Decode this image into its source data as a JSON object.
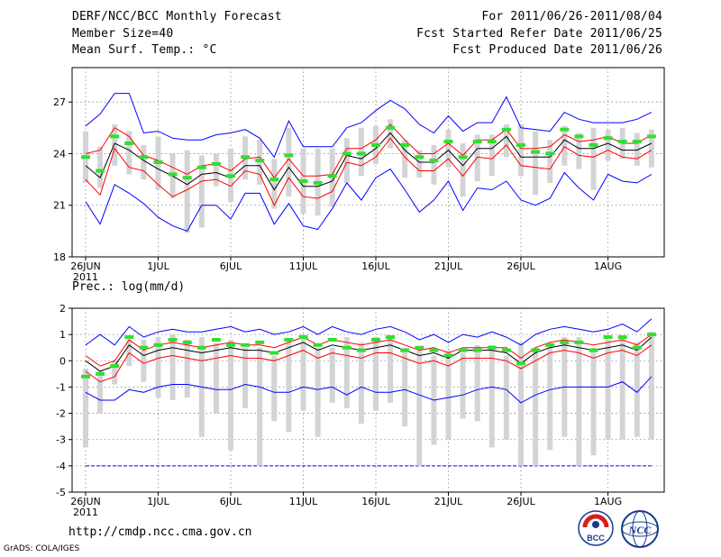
{
  "header": {
    "title": "DERF/NCC/BCC Monthly Forecast",
    "member_size": "Member Size=40",
    "variable": "Mean Surf. Temp.: °C",
    "period": "For 2011/06/26-2011/08/04",
    "refer_date": "Fcst Started Refer Date 2011/06/25",
    "produced_date": "Fcst Produced Date 2011/06/26"
  },
  "footer": {
    "url": "http://cmdp.ncc.cma.gov.cn",
    "grads": "GrADS: COLA/IGES",
    "logo_bcc": "BCC",
    "logo_ncc": "NCC"
  },
  "colors": {
    "box": "#d4d4d6",
    "ensemble_mean": "#000000",
    "spread": "#ff0000",
    "extreme": "#0000ff",
    "observation": "#33dd33",
    "grid": "#888888"
  },
  "chart_data": [
    {
      "type": "box",
      "title": "Mean Surf. Temp.: °C",
      "x_tick_labels": [
        "26JUN",
        "1JUL",
        "6JUL",
        "11JUL",
        "16JUL",
        "21JUL",
        "26JUL",
        "1AUG"
      ],
      "x_tick_days": [
        0,
        5,
        10,
        15,
        20,
        25,
        30,
        36
      ],
      "year_label": "2011",
      "ylim": [
        18,
        29
      ],
      "y_ticks": [
        18,
        21,
        24,
        27
      ],
      "mean": [
        23.3,
        22.6,
        24.6,
        24.2,
        23.6,
        23.1,
        22.7,
        22.2,
        22.8,
        22.9,
        22.6,
        23.3,
        23.3,
        21.9,
        23.2,
        22.1,
        22.1,
        22.4,
        23.9,
        23.7,
        24.3,
        25.2,
        24.2,
        23.5,
        23.5,
        24.2,
        23.3,
        24.3,
        24.3,
        25.0,
        23.8,
        23.8,
        23.8,
        24.8,
        24.3,
        24.3,
        24.6,
        24.2,
        24.2,
        24.6
      ],
      "upper": [
        24.0,
        24.2,
        25.5,
        25.0,
        23.9,
        23.6,
        23.2,
        22.8,
        23.3,
        23.4,
        23.0,
        23.7,
        23.8,
        22.6,
        23.7,
        22.7,
        22.7,
        22.8,
        24.3,
        24.3,
        24.8,
        25.7,
        24.8,
        24.0,
        24.0,
        24.6,
        23.9,
        24.8,
        24.8,
        25.4,
        24.3,
        24.3,
        24.4,
        25.1,
        24.7,
        24.8,
        25.0,
        24.6,
        24.6,
        25.1
      ],
      "lower": [
        22.5,
        21.6,
        24.3,
        23.2,
        23.0,
        22.2,
        21.5,
        21.9,
        22.4,
        22.5,
        22.1,
        23.0,
        22.8,
        21.0,
        22.6,
        21.5,
        21.4,
        21.8,
        23.5,
        23.3,
        23.8,
        24.9,
        23.8,
        23.0,
        23.0,
        23.7,
        22.7,
        23.8,
        23.7,
        24.5,
        23.3,
        23.2,
        23.1,
        24.4,
        23.9,
        23.8,
        24.2,
        23.8,
        23.7,
        24.2
      ],
      "max": [
        25.6,
        26.3,
        27.5,
        27.5,
        25.2,
        25.3,
        24.9,
        24.8,
        24.8,
        25.1,
        25.2,
        25.4,
        24.9,
        23.8,
        25.9,
        24.4,
        24.4,
        24.4,
        25.5,
        25.8,
        26.5,
        27.1,
        26.6,
        25.7,
        25.2,
        26.2,
        25.3,
        25.8,
        25.8,
        27.3,
        25.5,
        25.4,
        25.3,
        26.4,
        26.0,
        25.8,
        25.8,
        25.8,
        26.0,
        26.4
      ],
      "min": [
        21.2,
        19.9,
        22.2,
        21.7,
        21.1,
        20.3,
        19.8,
        19.5,
        21.0,
        21.0,
        20.2,
        21.7,
        21.7,
        19.9,
        21.1,
        19.8,
        19.6,
        20.8,
        22.3,
        21.3,
        22.6,
        23.1,
        21.9,
        20.6,
        21.3,
        22.4,
        20.7,
        22.0,
        21.9,
        22.4,
        21.3,
        21.0,
        21.4,
        22.9,
        22.0,
        21.3,
        22.8,
        22.4,
        22.3,
        22.8
      ],
      "box_high": [
        25.3,
        24.4,
        25.7,
        25.3,
        24.5,
        25.0,
        24.0,
        24.2,
        23.9,
        24.0,
        24.3,
        25.0,
        24.8,
        23.7,
        25.5,
        24.3,
        24.3,
        24.3,
        24.9,
        25.5,
        25.6,
        26.0,
        24.8,
        24.2,
        24.5,
        25.4,
        24.6,
        25.1,
        25.1,
        25.7,
        25.7,
        25.3,
        24.8,
        25.6,
        25.2,
        25.5,
        25.4,
        25.5,
        25.2,
        25.4
      ],
      "box_low": [
        22.3,
        22.0,
        23.3,
        22.8,
        22.5,
        21.9,
        21.4,
        19.4,
        19.7,
        22.1,
        21.2,
        22.5,
        22.2,
        20.8,
        21.5,
        20.5,
        20.4,
        20.9,
        22.3,
        22.7,
        23.4,
        24.3,
        22.6,
        22.6,
        22.2,
        23.2,
        21.5,
        22.4,
        22.7,
        23.8,
        22.7,
        21.6,
        22.3,
        23.3,
        23.1,
        21.9,
        23.6,
        23.7,
        23.3,
        23.2
      ],
      "observed": [
        23.8,
        23.0,
        25.0,
        24.6,
        23.8,
        23.5,
        22.8,
        22.6,
        23.2,
        23.4,
        22.7,
        23.8,
        23.6,
        22.5,
        23.9,
        22.4,
        22.3,
        22.7,
        24.0,
        24.0,
        24.5,
        25.5,
        24.5,
        23.8,
        23.6,
        24.7,
        23.8,
        24.7,
        24.7,
        25.4,
        24.5,
        24.1,
        24.0,
        25.4,
        25.0,
        24.5,
        24.9,
        24.7,
        24.7,
        25.0
      ]
    },
    {
      "type": "box",
      "title": "Prec.: log(mm/d)",
      "x_tick_labels": [
        "26JUN",
        "1JUL",
        "6JUL",
        "11JUL",
        "16JUL",
        "21JUL",
        "26JUL",
        "1AUG"
      ],
      "x_tick_days": [
        0,
        5,
        10,
        15,
        20,
        25,
        30,
        36
      ],
      "year_label": "2011",
      "ylim": [
        -5,
        2
      ],
      "y_ticks": [
        -5,
        -4,
        -3,
        -2,
        -1,
        0,
        1,
        2
      ],
      "reference_line": -4,
      "mean": [
        0.0,
        -0.4,
        -0.2,
        0.6,
        0.2,
        0.4,
        0.5,
        0.4,
        0.3,
        0.4,
        0.5,
        0.4,
        0.4,
        0.3,
        0.5,
        0.7,
        0.4,
        0.6,
        0.5,
        0.4,
        0.5,
        0.6,
        0.4,
        0.2,
        0.3,
        0.1,
        0.4,
        0.4,
        0.4,
        0.3,
        -0.1,
        0.3,
        0.5,
        0.6,
        0.5,
        0.4,
        0.5,
        0.6,
        0.4,
        0.9
      ],
      "upper": [
        0.2,
        -0.2,
        0.0,
        0.8,
        0.4,
        0.6,
        0.7,
        0.6,
        0.5,
        0.6,
        0.7,
        0.6,
        0.6,
        0.5,
        0.7,
        0.9,
        0.6,
        0.8,
        0.7,
        0.6,
        0.7,
        0.8,
        0.6,
        0.4,
        0.5,
        0.3,
        0.5,
        0.5,
        0.5,
        0.5,
        0.1,
        0.5,
        0.7,
        0.8,
        0.7,
        0.6,
        0.7,
        0.8,
        0.6,
        1.0
      ],
      "lower": [
        -0.4,
        -0.8,
        -0.6,
        0.3,
        -0.1,
        0.1,
        0.2,
        0.1,
        0.0,
        0.1,
        0.2,
        0.1,
        0.1,
        0.0,
        0.2,
        0.4,
        0.1,
        0.3,
        0.2,
        0.1,
        0.3,
        0.3,
        0.1,
        -0.1,
        0.0,
        -0.2,
        0.1,
        0.1,
        0.1,
        0.0,
        -0.3,
        0.0,
        0.3,
        0.4,
        0.3,
        0.1,
        0.3,
        0.4,
        0.2,
        0.6
      ],
      "max": [
        0.6,
        1.0,
        0.6,
        1.3,
        0.9,
        1.1,
        1.2,
        1.1,
        1.1,
        1.2,
        1.3,
        1.1,
        1.2,
        1.0,
        1.1,
        1.3,
        1.0,
        1.3,
        1.1,
        1.0,
        1.2,
        1.3,
        1.1,
        0.8,
        1.0,
        0.7,
        1.0,
        0.9,
        1.1,
        0.9,
        0.6,
        1.0,
        1.2,
        1.3,
        1.2,
        1.1,
        1.2,
        1.4,
        1.1,
        1.6
      ],
      "min": [
        -1.2,
        -1.5,
        -1.5,
        -1.1,
        -1.2,
        -1.0,
        -0.9,
        -0.9,
        -1.0,
        -1.1,
        -1.1,
        -0.9,
        -1.0,
        -1.2,
        -1.2,
        -1.0,
        -1.1,
        -1.0,
        -1.3,
        -1.0,
        -1.2,
        -1.2,
        -1.1,
        -1.3,
        -1.5,
        -1.4,
        -1.3,
        -1.1,
        -1.0,
        -1.1,
        -1.6,
        -1.3,
        -1.1,
        -1.0,
        -1.0,
        -1.0,
        -1.0,
        -0.8,
        -1.2,
        -0.6
      ],
      "box_high": [
        -0.3,
        -0.4,
        0.0,
        0.8,
        0.8,
        0.9,
        1.0,
        0.8,
        0.9,
        0.7,
        0.8,
        0.5,
        0.5,
        0.2,
        0.7,
        1.0,
        0.5,
        0.5,
        0.9,
        0.7,
        0.9,
        0.9,
        0.5,
        0.4,
        0.2,
        0.4,
        0.3,
        0.6,
        0.6,
        0.2,
        0.7,
        0.5,
        0.6,
        0.9,
        0.9,
        0.5,
        0.8,
        0.9,
        0.7,
        1.1
      ],
      "box_low": [
        -3.3,
        -2.0,
        -0.9,
        -0.2,
        -0.8,
        -1.4,
        -1.5,
        -1.4,
        -2.9,
        -2.0,
        -3.4,
        -1.8,
        -4.0,
        -2.3,
        -2.7,
        -1.9,
        -2.9,
        -1.6,
        -1.8,
        -2.4,
        -1.9,
        -1.6,
        -2.5,
        -4.0,
        -3.2,
        -3.0,
        -2.2,
        -2.3,
        -3.3,
        -3.0,
        -4.0,
        -4.0,
        -3.4,
        -2.9,
        -4.0,
        -3.6,
        -3.0,
        -3.0,
        -2.9,
        -3.0
      ],
      "observed": [
        -0.6,
        -0.5,
        -0.2,
        0.9,
        0.5,
        0.6,
        0.8,
        0.7,
        0.5,
        0.8,
        0.6,
        0.6,
        0.7,
        0.3,
        0.8,
        0.9,
        0.6,
        0.8,
        0.5,
        0.4,
        0.8,
        0.9,
        0.4,
        0.5,
        0.4,
        0.2,
        0.4,
        0.4,
        0.5,
        0.4,
        -0.1,
        0.4,
        0.6,
        0.7,
        0.7,
        0.4,
        0.9,
        0.9,
        0.5,
        1.0
      ]
    }
  ]
}
